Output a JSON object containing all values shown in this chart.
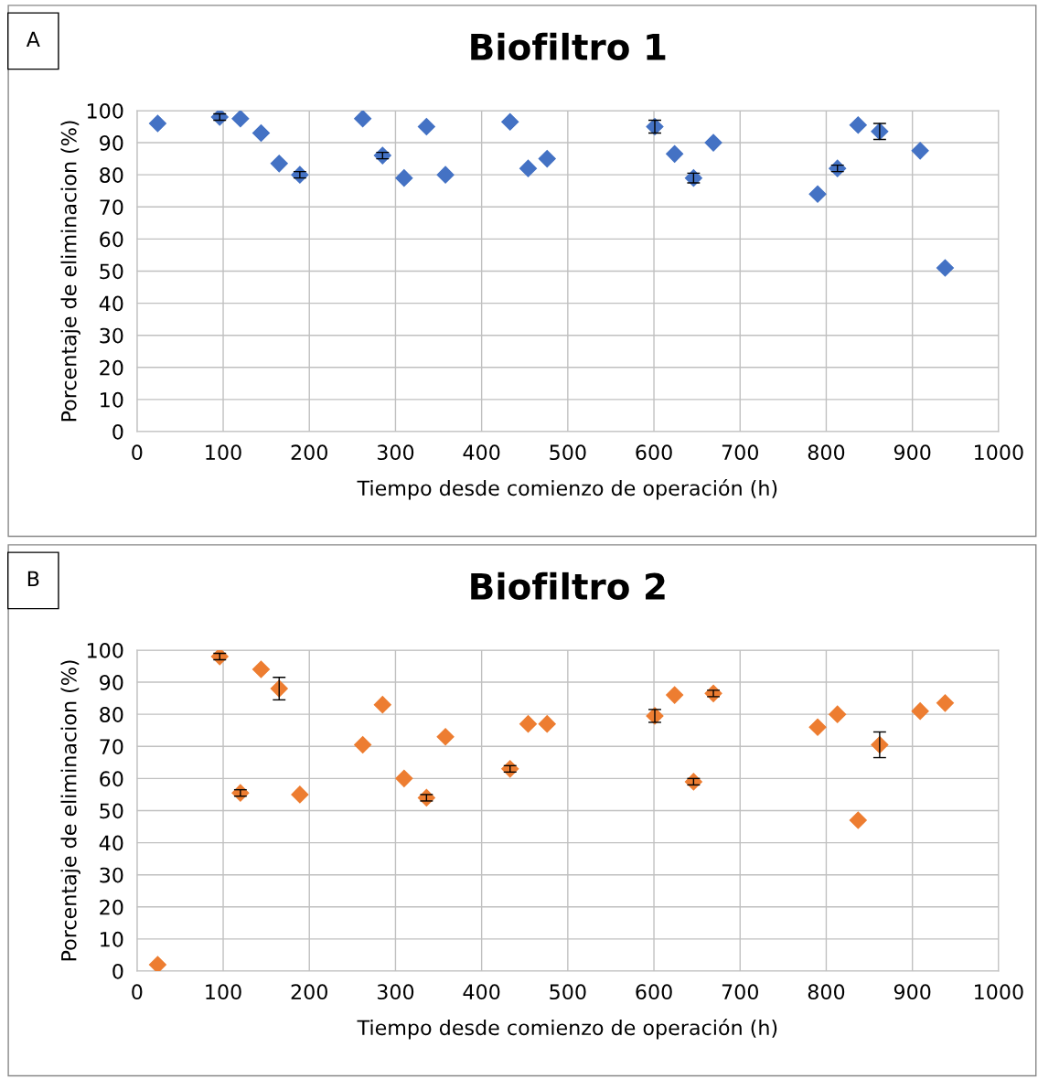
{
  "chart_data": [
    {
      "type": "scatter",
      "title": "Biofiltro 1",
      "xlabel": "Tiempo desde comienzo de operación (h)",
      "ylabel": "Porcentaje de eliminacion (%)",
      "annotations": [
        "A"
      ],
      "x": [
        24,
        96,
        120,
        144,
        165,
        189,
        262,
        285,
        310,
        336,
        358,
        433,
        454,
        476,
        601,
        624,
        646,
        669,
        790,
        813,
        837,
        862,
        909,
        938
      ],
      "series": [
        {
          "color": "#4472c4",
          "values": [
            96,
            98,
            97.5,
            93,
            83.5,
            80,
            97.5,
            86,
            79,
            95,
            80,
            96.5,
            82,
            85,
            95,
            86.5,
            79,
            90,
            74,
            82,
            95.5,
            93.5,
            87.5,
            51
          ],
          "errors": [
            null,
            1,
            null,
            null,
            null,
            1,
            null,
            1,
            null,
            null,
            null,
            null,
            null,
            null,
            2,
            null,
            1.5,
            null,
            null,
            1,
            null,
            2.5,
            null,
            null
          ]
        }
      ],
      "xlim": [
        0,
        1000
      ],
      "xticks": [
        0,
        100,
        200,
        300,
        400,
        500,
        600,
        700,
        800,
        900,
        1000
      ],
      "ylim": [
        0,
        100
      ],
      "yticks": [
        0,
        10,
        20,
        30,
        40,
        50,
        60,
        70,
        80,
        90,
        100
      ],
      "grid": true,
      "marker": "diamond"
    },
    {
      "type": "scatter",
      "title": "Biofiltro 2",
      "xlabel": "Tiempo desde comienzo de operación (h)",
      "ylabel": "Porcentaje de eliminacion (%)",
      "annotations": [
        "B"
      ],
      "x": [
        24,
        96,
        120,
        144,
        165,
        189,
        262,
        285,
        310,
        336,
        358,
        433,
        454,
        476,
        601,
        624,
        646,
        669,
        790,
        813,
        837,
        862,
        909,
        938
      ],
      "series": [
        {
          "color": "#ed7d31",
          "values": [
            2,
            98,
            55.5,
            94,
            88,
            55,
            70.5,
            83,
            60,
            54,
            73,
            63,
            77,
            77,
            79.5,
            86,
            59,
            86.5,
            76,
            80,
            47,
            70.5,
            81,
            83.5
          ],
          "errors": [
            null,
            1,
            1,
            null,
            3.5,
            null,
            null,
            null,
            null,
            1,
            null,
            1,
            null,
            null,
            2,
            null,
            1,
            1,
            null,
            null,
            null,
            4,
            null,
            null
          ]
        }
      ],
      "xlim": [
        0,
        1000
      ],
      "xticks": [
        0,
        100,
        200,
        300,
        400,
        500,
        600,
        700,
        800,
        900,
        1000
      ],
      "ylim": [
        0,
        100
      ],
      "yticks": [
        0,
        10,
        20,
        30,
        40,
        50,
        60,
        70,
        80,
        90,
        100
      ],
      "grid": true,
      "marker": "diamond"
    }
  ]
}
